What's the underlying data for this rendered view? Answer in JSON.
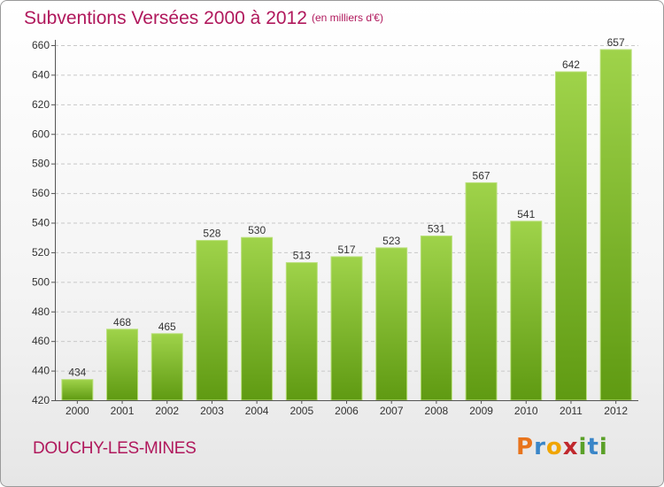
{
  "header": {
    "title": "Subventions Versées 2000 à 2012",
    "subtitle": "(en milliers d'€)"
  },
  "footer": {
    "town": "DOUCHY-LES-MINES",
    "logo_letters": [
      "P",
      "r",
      "o",
      "x",
      "i",
      "t",
      "i"
    ]
  },
  "colors": {
    "accent": "#b0185c",
    "bar_light": "#9fd34a",
    "bar_dark": "#5f9a12",
    "logo": [
      "#e8741c",
      "#3a86c8",
      "#f0a500",
      "#c0282d",
      "#5aa028",
      "#3a86c8",
      "#5aa028"
    ]
  },
  "chart_data": {
    "type": "bar",
    "title": "Subventions Versées 2000 à 2012",
    "ylabel": "(en milliers d'€)",
    "xlabel": "",
    "categories": [
      "2000",
      "2001",
      "2002",
      "2003",
      "2004",
      "2005",
      "2006",
      "2007",
      "2008",
      "2009",
      "2010",
      "2011",
      "2012"
    ],
    "values": [
      434,
      468,
      465,
      528,
      530,
      513,
      517,
      523,
      531,
      567,
      541,
      642,
      657
    ],
    "ylim": [
      420,
      660
    ],
    "yticks": [
      420,
      440,
      460,
      480,
      500,
      520,
      540,
      560,
      580,
      600,
      620,
      640,
      660
    ],
    "grid": true
  }
}
